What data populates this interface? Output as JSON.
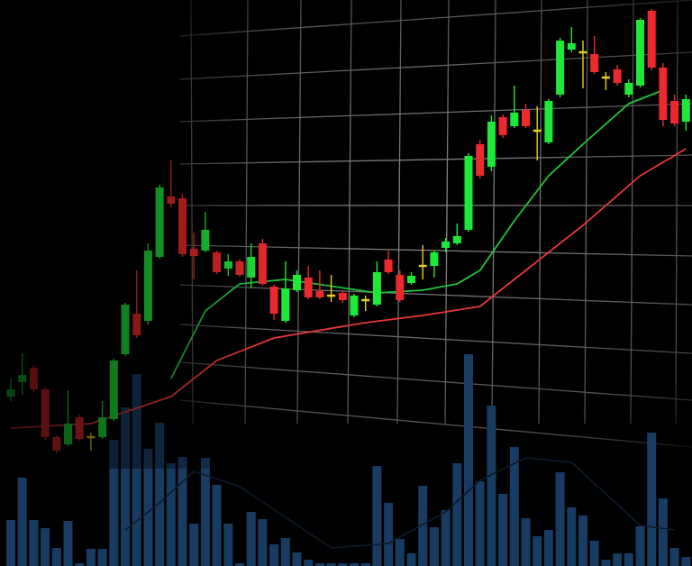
{
  "chart_data": {
    "type": "candlestick",
    "ylim": [
      0,
      628
    ],
    "up_color": "#1ee838",
    "down_color": "#ec2a2e",
    "flat_color": "#e6d21a",
    "open": [
      188,
      204,
      220,
      196,
      143,
      135,
      165,
      143,
      143,
      163,
      235,
      280,
      272,
      343,
      410,
      408,
      352,
      350,
      348,
      330,
      338,
      320,
      358,
      310,
      272,
      306,
      320,
      305,
      300,
      303,
      278,
      295,
      290,
      340,
      323,
      314,
      333,
      333,
      353,
      358,
      373,
      468,
      443,
      498,
      488,
      506,
      483,
      470,
      523,
      573,
      570,
      568,
      542,
      551,
      523,
      533,
      616,
      553,
      516,
      493
    ],
    "high": [
      208,
      236,
      223,
      198,
      145,
      195,
      168,
      148,
      183,
      230,
      292,
      328,
      358,
      423,
      450,
      413,
      370,
      393,
      350,
      346,
      340,
      358,
      363,
      312,
      338,
      328,
      333,
      328,
      323,
      306,
      302,
      300,
      338,
      350,
      328,
      326,
      356,
      350,
      364,
      380,
      458,
      473,
      500,
      501,
      533,
      513,
      510,
      518,
      586,
      598,
      583,
      588,
      548,
      556,
      540,
      608,
      618,
      558,
      523,
      523
    ],
    "low": [
      183,
      190,
      193,
      140,
      125,
      133,
      139,
      128,
      141,
      161,
      233,
      253,
      268,
      341,
      398,
      343,
      318,
      348,
      324,
      322,
      321,
      308,
      311,
      273,
      270,
      304,
      296,
      296,
      293,
      292,
      276,
      283,
      288,
      324,
      293,
      312,
      318,
      320,
      348,
      356,
      371,
      430,
      438,
      475,
      486,
      486,
      450,
      468,
      520,
      570,
      530,
      546,
      528,
      533,
      520,
      531,
      550,
      488,
      488,
      483
    ],
    "close": [
      196,
      212,
      196,
      143,
      128,
      158,
      141,
      143,
      165,
      228,
      290,
      256,
      350,
      420,
      402,
      346,
      344,
      373,
      326,
      338,
      323,
      343,
      313,
      280,
      308,
      323,
      298,
      298,
      300,
      295,
      300,
      295,
      326,
      326,
      295,
      322,
      333,
      348,
      360,
      366,
      455,
      433,
      493,
      478,
      503,
      488,
      483,
      516,
      583,
      580,
      570,
      548,
      542,
      536,
      536,
      606,
      553,
      495,
      491,
      518
    ],
    "volume": [
      51,
      98,
      51,
      42,
      20,
      50,
      3,
      19,
      19,
      140,
      176,
      213,
      130,
      159,
      114,
      121,
      47,
      120,
      90,
      47,
      3,
      60,
      52,
      24,
      31,
      15,
      7,
      3,
      3,
      3,
      3,
      3,
      111,
      70,
      30,
      14,
      89,
      43,
      62,
      114,
      235,
      94,
      178,
      80,
      132,
      53,
      33,
      40,
      104,
      65,
      56,
      28,
      7,
      14,
      14,
      44,
      148,
      75,
      20,
      10
    ],
    "volume_ylim": [
      0,
      250
    ],
    "volume_color": "#173b61",
    "lines": [
      {
        "color": "#e8383a",
        "x": [
          0,
          7,
          14,
          18,
          23,
          31,
          36,
          41,
          45,
          50,
          55,
          59
        ],
        "values": [
          153,
          158,
          188,
          228,
          253,
          270,
          278,
          288,
          328,
          378,
          433,
          463
        ]
      },
      {
        "color": "#22c43c",
        "x": [
          14,
          17,
          20,
          24,
          32,
          36,
          39,
          41,
          44,
          47,
          50,
          54,
          57
        ],
        "values": [
          208,
          283,
          313,
          318,
          303,
          306,
          313,
          328,
          383,
          433,
          468,
          513,
          528
        ]
      }
    ],
    "volume_line": {
      "color": "#0c1a2a",
      "x": [
        10,
        13,
        16,
        20,
        28,
        33,
        38,
        41,
        45,
        49,
        55,
        58
      ],
      "values": [
        40,
        70,
        105,
        88,
        20,
        25,
        60,
        95,
        120,
        115,
        45,
        40
      ]
    }
  }
}
